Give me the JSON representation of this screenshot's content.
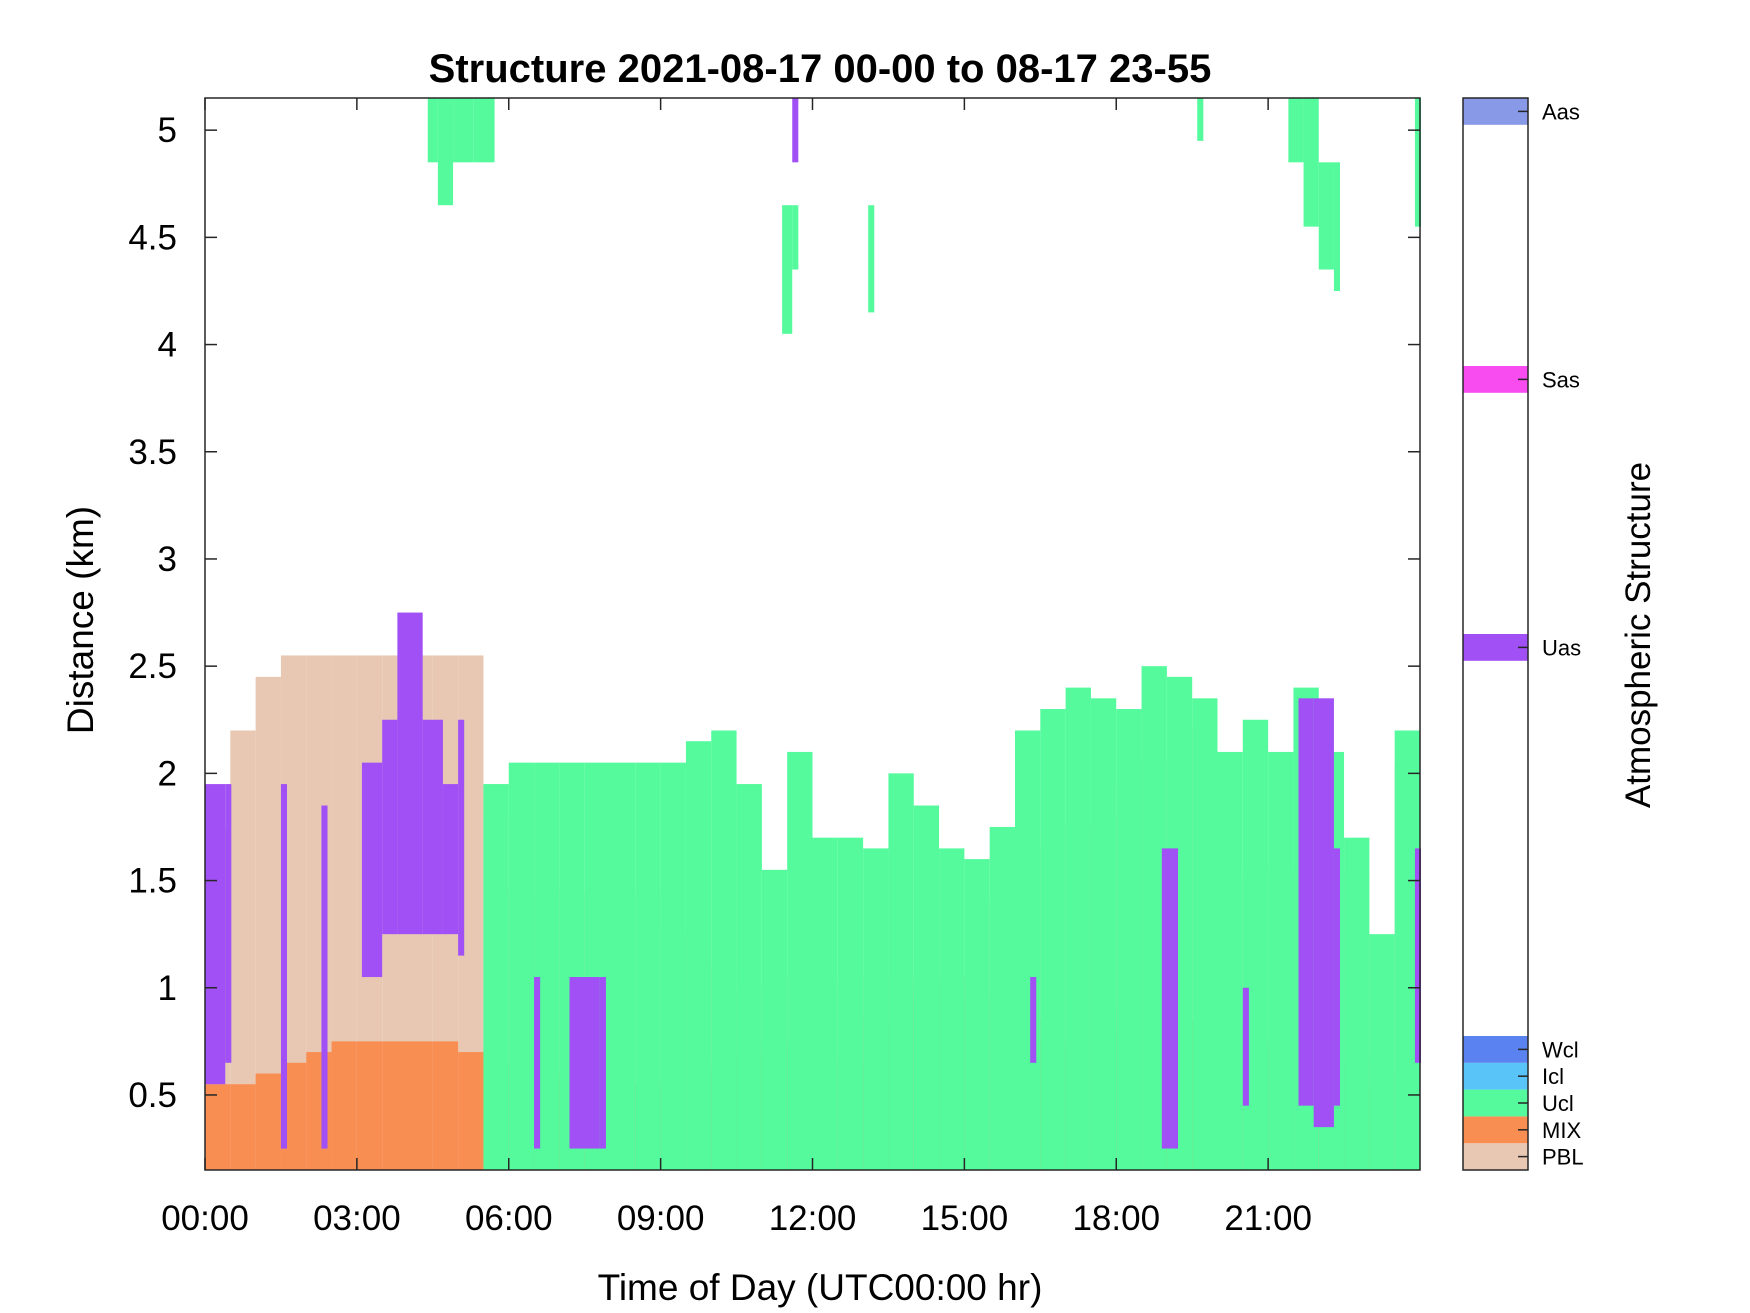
{
  "chart_data": {
    "type": "heatmap",
    "title": "Structure 2021-08-17 00-00 to 08-17 23-55",
    "xlabel": "Time of Day (UTC00:00 hr)",
    "ylabel": "Distance (km)",
    "xlim": [
      0,
      24
    ],
    "ylim": [
      0.15,
      5.15
    ],
    "x_ticks": [
      "00:00",
      "03:00",
      "06:00",
      "09:00",
      "12:00",
      "15:00",
      "18:00",
      "21:00"
    ],
    "y_ticks": [
      "0.5",
      "1",
      "1.5",
      "2",
      "2.5",
      "3",
      "3.5",
      "4",
      "4.5",
      "5"
    ],
    "grid": false,
    "colorbar": {
      "label": "Atmospheric Structure",
      "classes": [
        {
          "name": "PBL",
          "color": "#e8c8b3"
        },
        {
          "name": "MIX",
          "color": "#f98e53"
        },
        {
          "name": "Ucl",
          "color": "#54fa9c"
        },
        {
          "name": "Icl",
          "color": "#58c4f8"
        },
        {
          "name": "Wcl",
          "color": "#5a82f0"
        },
        {
          "name": "Uas",
          "color": "#a050f5"
        },
        {
          "name": "Sas",
          "color": "#f84cf0"
        },
        {
          "name": "Aas",
          "color": "#8899e8"
        }
      ]
    },
    "layers": [
      {
        "class": "PBL",
        "x": [
          0.0,
          0.5,
          1.0,
          1.5,
          2.0,
          2.5,
          3.0,
          3.5,
          4.0,
          4.5,
          5.0,
          5.5,
          6.0,
          6.5,
          7.0,
          7.5,
          8.0,
          8.5,
          9.0,
          9.5,
          10.0,
          10.5,
          11.0,
          11.5,
          12.0,
          12.5,
          13.0,
          13.5,
          14.0,
          14.5,
          15.0,
          15.5,
          16.0,
          16.5,
          17.0,
          17.5,
          18.0,
          18.5,
          19.0,
          19.5,
          20.0,
          20.5,
          21.0,
          21.5,
          22.0,
          22.5,
          23.0,
          23.5
        ],
        "top_km": [
          1.75,
          2.2,
          2.45,
          2.55,
          2.55,
          2.55,
          2.55,
          2.55,
          2.55,
          2.55,
          2.55,
          1.8,
          1.45,
          1.45,
          1.45,
          1.45,
          1.45,
          1.45,
          1.25,
          1.2,
          1.1,
          1.0,
          1.0,
          1.05,
          1.0,
          1.05,
          1.05,
          1.05,
          1.05,
          1.05,
          1.05,
          1.4,
          1.65,
          1.75,
          1.75,
          1.8,
          1.95,
          2.05,
          2.3,
          2.2,
          1.5,
          1.55,
          1.55,
          1.55,
          1.55,
          1.55,
          0.65,
          2.05
        ]
      },
      {
        "class": "MIX",
        "x": [
          0.0,
          0.5,
          1.0,
          1.5,
          2.0,
          2.5,
          3.0,
          3.5,
          4.0,
          4.5,
          5.0,
          5.5,
          6.0,
          6.5,
          7.0,
          7.5,
          8.0,
          8.5,
          9.0,
          9.5,
          10.0,
          10.5,
          11.0,
          11.5,
          12.0,
          12.5,
          13.0,
          13.5,
          14.0,
          14.5,
          15.0,
          15.5,
          16.0,
          16.5,
          17.0,
          17.5,
          18.0,
          18.5,
          19.0,
          19.5,
          20.0,
          20.5,
          21.0,
          21.5,
          22.0,
          22.5,
          23.0,
          23.5
        ],
        "top_km": [
          0.55,
          0.55,
          0.6,
          0.65,
          0.7,
          0.75,
          0.75,
          0.75,
          0.75,
          0.75,
          0.7,
          0.65,
          0.65,
          0.6,
          0.6,
          0.55,
          0.55,
          0.55,
          0.55,
          0.6,
          0.65,
          0.7,
          0.75,
          0.75,
          0.55,
          0.65,
          0.85,
          0.95,
          1.0,
          1.05,
          0.95,
          0.9,
          0.85,
          0.75,
          0.75,
          0.8,
          0.9,
          0.95,
          0.85,
          0.85,
          0.85,
          0.75,
          0.75,
          0.75,
          0.65,
          0.65,
          0.55,
          0.6
        ]
      },
      {
        "class": "Ucl",
        "x": [
          5.5,
          6.0,
          6.5,
          7.0,
          7.5,
          8.0,
          8.5,
          9.0,
          9.5,
          10.0,
          10.5,
          11.0,
          11.5,
          12.0,
          12.5,
          13.0,
          13.5,
          14.0,
          14.5,
          15.0,
          15.5,
          16.0,
          16.5,
          17.0,
          17.5,
          18.0,
          18.5,
          19.0,
          19.5,
          20.0,
          20.5,
          21.0,
          21.5,
          22.0,
          22.5,
          23.0,
          23.5
        ],
        "top_km": [
          1.95,
          2.05,
          2.05,
          2.05,
          2.05,
          2.05,
          2.05,
          2.05,
          2.15,
          2.2,
          1.95,
          1.55,
          2.1,
          1.7,
          1.7,
          1.65,
          2.0,
          1.85,
          1.65,
          1.6,
          1.75,
          2.2,
          2.3,
          2.4,
          2.35,
          2.3,
          2.5,
          2.45,
          2.35,
          2.1,
          2.25,
          2.1,
          2.4,
          2.1,
          1.7,
          1.25,
          2.2
        ]
      },
      {
        "class": "Uas",
        "x": [
          0.0,
          0.4,
          1.5,
          2.3,
          3.1,
          3.5,
          3.8,
          4.3,
          4.7,
          5.0,
          6.5,
          7.2,
          7.8,
          16.3,
          18.9,
          19.1,
          20.5,
          21.6,
          21.9,
          22.3,
          23.9
        ],
        "top_km": [
          1.95,
          1.95,
          1.95,
          1.85,
          2.05,
          2.25,
          2.75,
          2.25,
          1.95,
          2.25,
          1.05,
          1.05,
          1.05,
          1.05,
          1.65,
          1.65,
          1.0,
          2.35,
          2.35,
          1.65,
          1.65
        ],
        "bottom_km": [
          0.55,
          0.65,
          0.25,
          0.25,
          1.05,
          1.25,
          1.25,
          1.25,
          1.25,
          1.15,
          0.25,
          0.25,
          0.25,
          0.65,
          0.25,
          0.25,
          0.45,
          0.45,
          0.35,
          0.45,
          0.65
        ]
      },
      {
        "class": "Ucl",
        "x": [
          4.4,
          4.6,
          4.9,
          5.3,
          5.6,
          11.4,
          11.6,
          13.1,
          19.6,
          21.4,
          21.7,
          22.0,
          22.3,
          23.9
        ],
        "top_km": [
          5.15,
          5.15,
          5.15,
          5.15,
          5.15,
          4.65,
          4.65,
          4.65,
          5.15,
          5.15,
          5.15,
          4.85,
          4.85,
          5.15
        ],
        "bottom_km": [
          4.85,
          4.65,
          4.85,
          4.85,
          4.85,
          4.05,
          4.35,
          4.15,
          4.95,
          4.85,
          4.55,
          4.35,
          4.25,
          4.55
        ]
      },
      {
        "class": "Uas",
        "x": [
          11.6
        ],
        "top_km": [
          5.15
        ],
        "bottom_km": [
          4.85
        ]
      }
    ]
  }
}
